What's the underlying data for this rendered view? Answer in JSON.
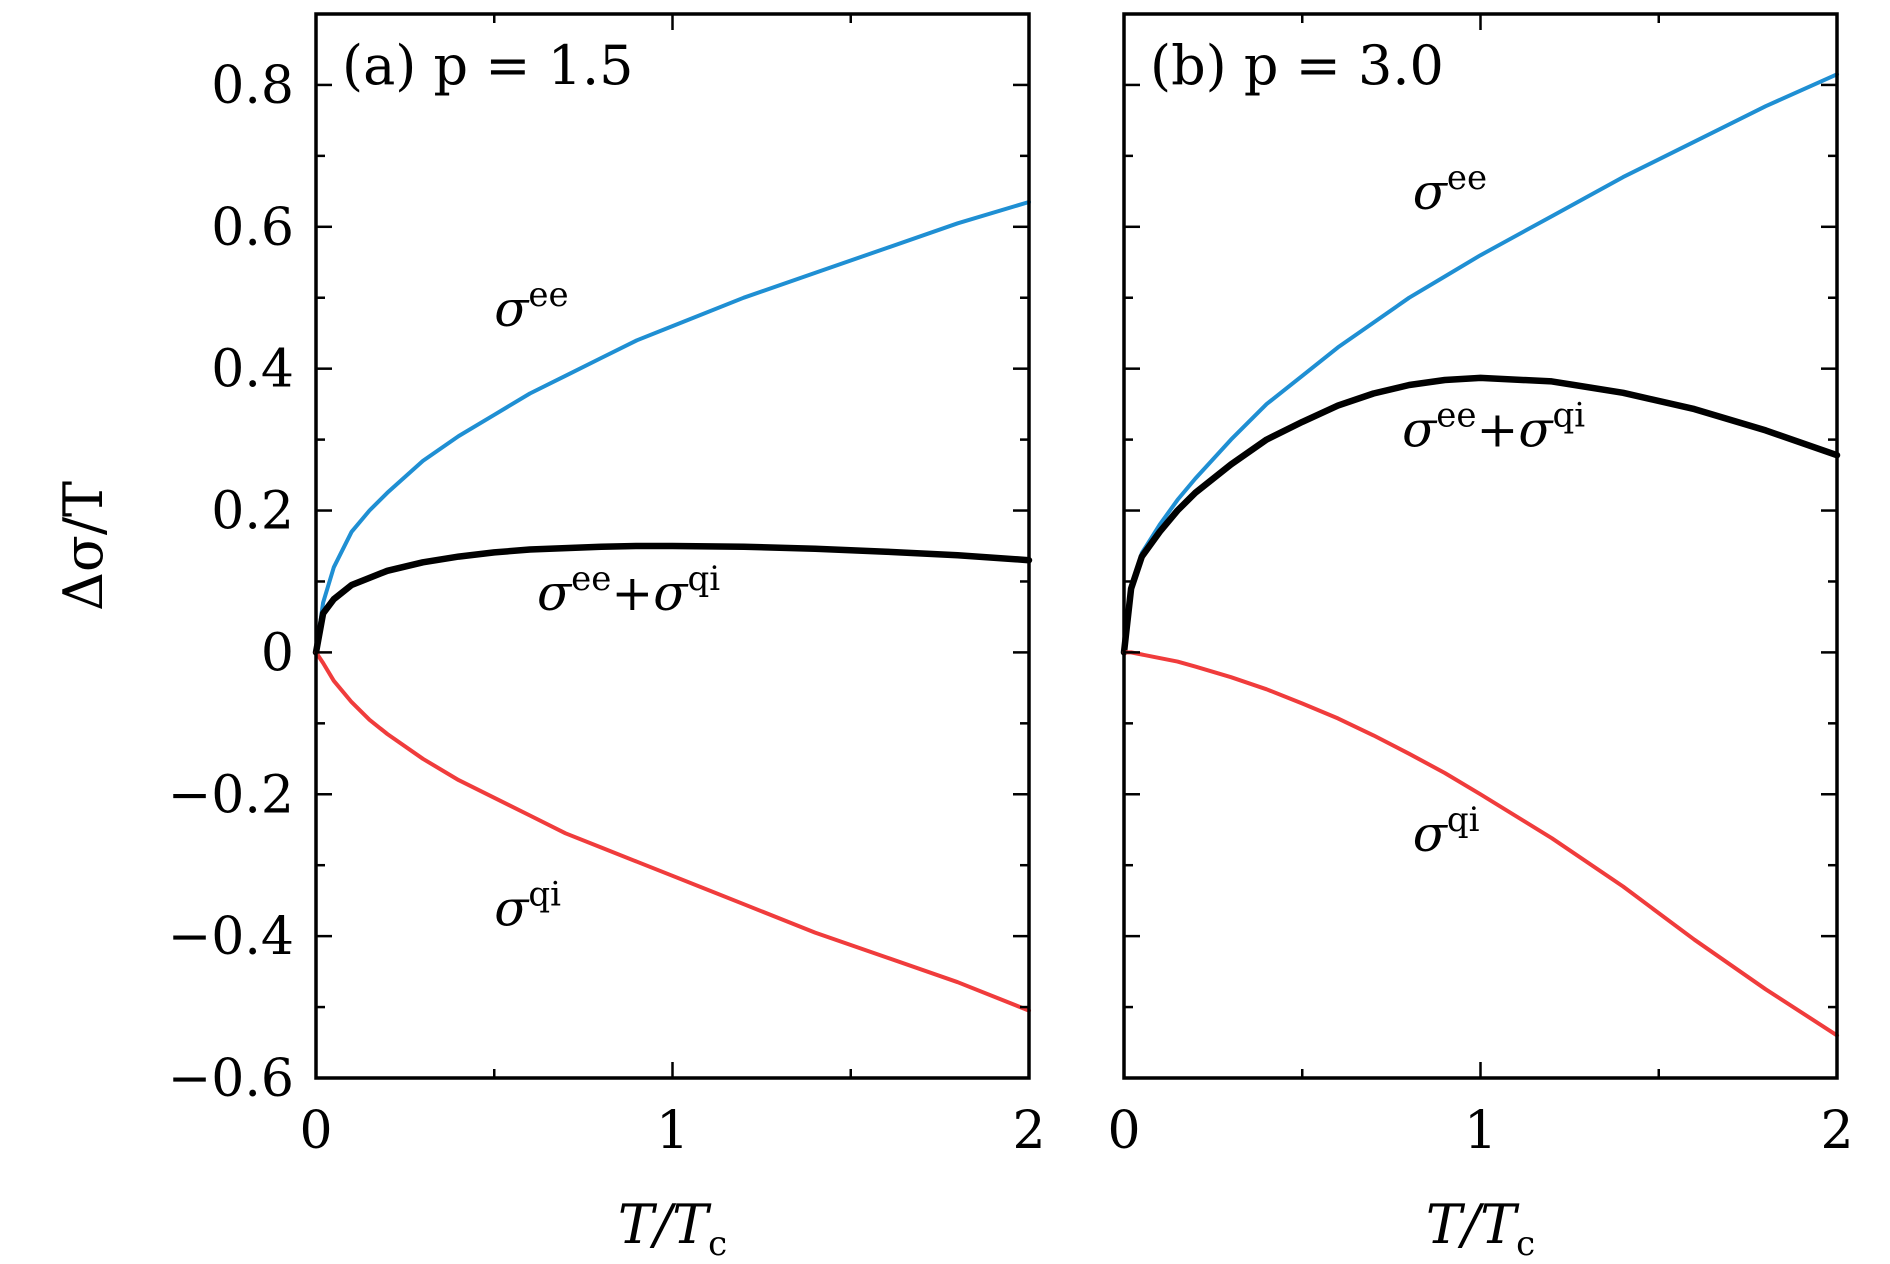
{
  "colors": {
    "ee": "#1f8fd3",
    "qi": "#f03c3c",
    "sum": "#000000"
  },
  "ylabel": "Δσ/T",
  "xlabel": {
    "main": "T/T",
    "sub": "c"
  },
  "chart_data": [
    {
      "type": "line",
      "panel_label": "(a) p = 1.5",
      "xlim": [
        0,
        2
      ],
      "ylim": [
        -0.6,
        0.9
      ],
      "xticks": [
        0,
        1,
        2
      ],
      "xtick_labels": [
        "0",
        "1",
        "2"
      ],
      "yticks": [
        -0.6,
        -0.4,
        -0.2,
        0,
        0.2,
        0.4,
        0.6,
        0.8
      ],
      "ytick_labels": [
        "−0.6",
        "−0.4",
        "−0.2",
        "0",
        "0.2",
        "0.4",
        "0.6",
        "0.8"
      ],
      "ylabel": "Δσ/T",
      "xlabel": "T/Tc",
      "series": [
        {
          "name": "σee",
          "label": {
            "base": "σ",
            "sup": "ee"
          },
          "color": "#1f8fd3",
          "x": [
            0,
            0.02,
            0.05,
            0.1,
            0.15,
            0.2,
            0.3,
            0.4,
            0.5,
            0.6,
            0.7,
            0.8,
            0.9,
            1.0,
            1.2,
            1.4,
            1.6,
            1.8,
            2.0
          ],
          "y": [
            0,
            0.07,
            0.12,
            0.17,
            0.2,
            0.225,
            0.27,
            0.305,
            0.335,
            0.365,
            0.39,
            0.415,
            0.44,
            0.46,
            0.5,
            0.535,
            0.57,
            0.605,
            0.635
          ]
        },
        {
          "name": "σee+σqi",
          "label": {
            "base": "σ",
            "sup": "ee",
            "mid": "+σ",
            "sup2": "qi"
          },
          "color": "#000000",
          "x": [
            0,
            0.02,
            0.05,
            0.1,
            0.15,
            0.2,
            0.3,
            0.4,
            0.5,
            0.6,
            0.7,
            0.8,
            0.9,
            1.0,
            1.2,
            1.4,
            1.6,
            1.8,
            2.0
          ],
          "y": [
            0,
            0.055,
            0.075,
            0.095,
            0.105,
            0.115,
            0.127,
            0.135,
            0.141,
            0.145,
            0.147,
            0.149,
            0.15,
            0.15,
            0.149,
            0.146,
            0.142,
            0.137,
            0.13
          ]
        },
        {
          "name": "σqi",
          "label": {
            "base": "σ",
            "sup": "qi"
          },
          "color": "#f03c3c",
          "x": [
            0,
            0.02,
            0.05,
            0.1,
            0.15,
            0.2,
            0.3,
            0.4,
            0.5,
            0.6,
            0.7,
            0.8,
            0.9,
            1.0,
            1.2,
            1.4,
            1.6,
            1.8,
            2.0
          ],
          "y": [
            0,
            -0.015,
            -0.04,
            -0.07,
            -0.095,
            -0.115,
            -0.15,
            -0.18,
            -0.205,
            -0.23,
            -0.255,
            -0.275,
            -0.295,
            -0.315,
            -0.355,
            -0.395,
            -0.43,
            -0.465,
            -0.505
          ]
        }
      ]
    },
    {
      "type": "line",
      "panel_label": "(b) p = 3.0",
      "xlim": [
        0,
        2
      ],
      "ylim": [
        -0.6,
        0.9
      ],
      "xticks": [
        0,
        1,
        2
      ],
      "xtick_labels": [
        "0",
        "1",
        "2"
      ],
      "yticks": [
        -0.6,
        -0.4,
        -0.2,
        0,
        0.2,
        0.4,
        0.6,
        0.8
      ],
      "ytick_labels": [],
      "xlabel": "T/Tc",
      "series": [
        {
          "name": "σee",
          "label": {
            "base": "σ",
            "sup": "ee"
          },
          "color": "#1f8fd3",
          "x": [
            0,
            0.02,
            0.05,
            0.1,
            0.15,
            0.2,
            0.3,
            0.4,
            0.5,
            0.6,
            0.7,
            0.8,
            0.9,
            1.0,
            1.2,
            1.4,
            1.6,
            1.8,
            2.0
          ],
          "y": [
            0,
            0.09,
            0.14,
            0.18,
            0.215,
            0.245,
            0.3,
            0.35,
            0.39,
            0.43,
            0.465,
            0.5,
            0.53,
            0.56,
            0.615,
            0.67,
            0.72,
            0.77,
            0.815
          ]
        },
        {
          "name": "σee+σqi",
          "label": {
            "base": "σ",
            "sup": "ee",
            "mid": "+σ",
            "sup2": "qi"
          },
          "color": "#000000",
          "x": [
            0,
            0.02,
            0.05,
            0.1,
            0.15,
            0.2,
            0.3,
            0.4,
            0.5,
            0.6,
            0.7,
            0.8,
            0.9,
            1.0,
            1.2,
            1.4,
            1.6,
            1.8,
            2.0
          ],
          "y": [
            0,
            0.09,
            0.135,
            0.17,
            0.2,
            0.225,
            0.265,
            0.3,
            0.325,
            0.348,
            0.365,
            0.377,
            0.384,
            0.387,
            0.382,
            0.366,
            0.343,
            0.313,
            0.278
          ]
        },
        {
          "name": "σqi",
          "label": {
            "base": "σ",
            "sup": "qi"
          },
          "color": "#f03c3c",
          "x": [
            0,
            0.02,
            0.05,
            0.1,
            0.15,
            0.2,
            0.3,
            0.4,
            0.5,
            0.6,
            0.7,
            0.8,
            0.9,
            1.0,
            1.2,
            1.4,
            1.6,
            1.8,
            2.0
          ],
          "y": [
            0,
            0,
            -0.003,
            -0.008,
            -0.013,
            -0.02,
            -0.035,
            -0.052,
            -0.072,
            -0.093,
            -0.117,
            -0.143,
            -0.17,
            -0.2,
            -0.262,
            -0.33,
            -0.405,
            -0.475,
            -0.54
          ]
        }
      ]
    }
  ]
}
